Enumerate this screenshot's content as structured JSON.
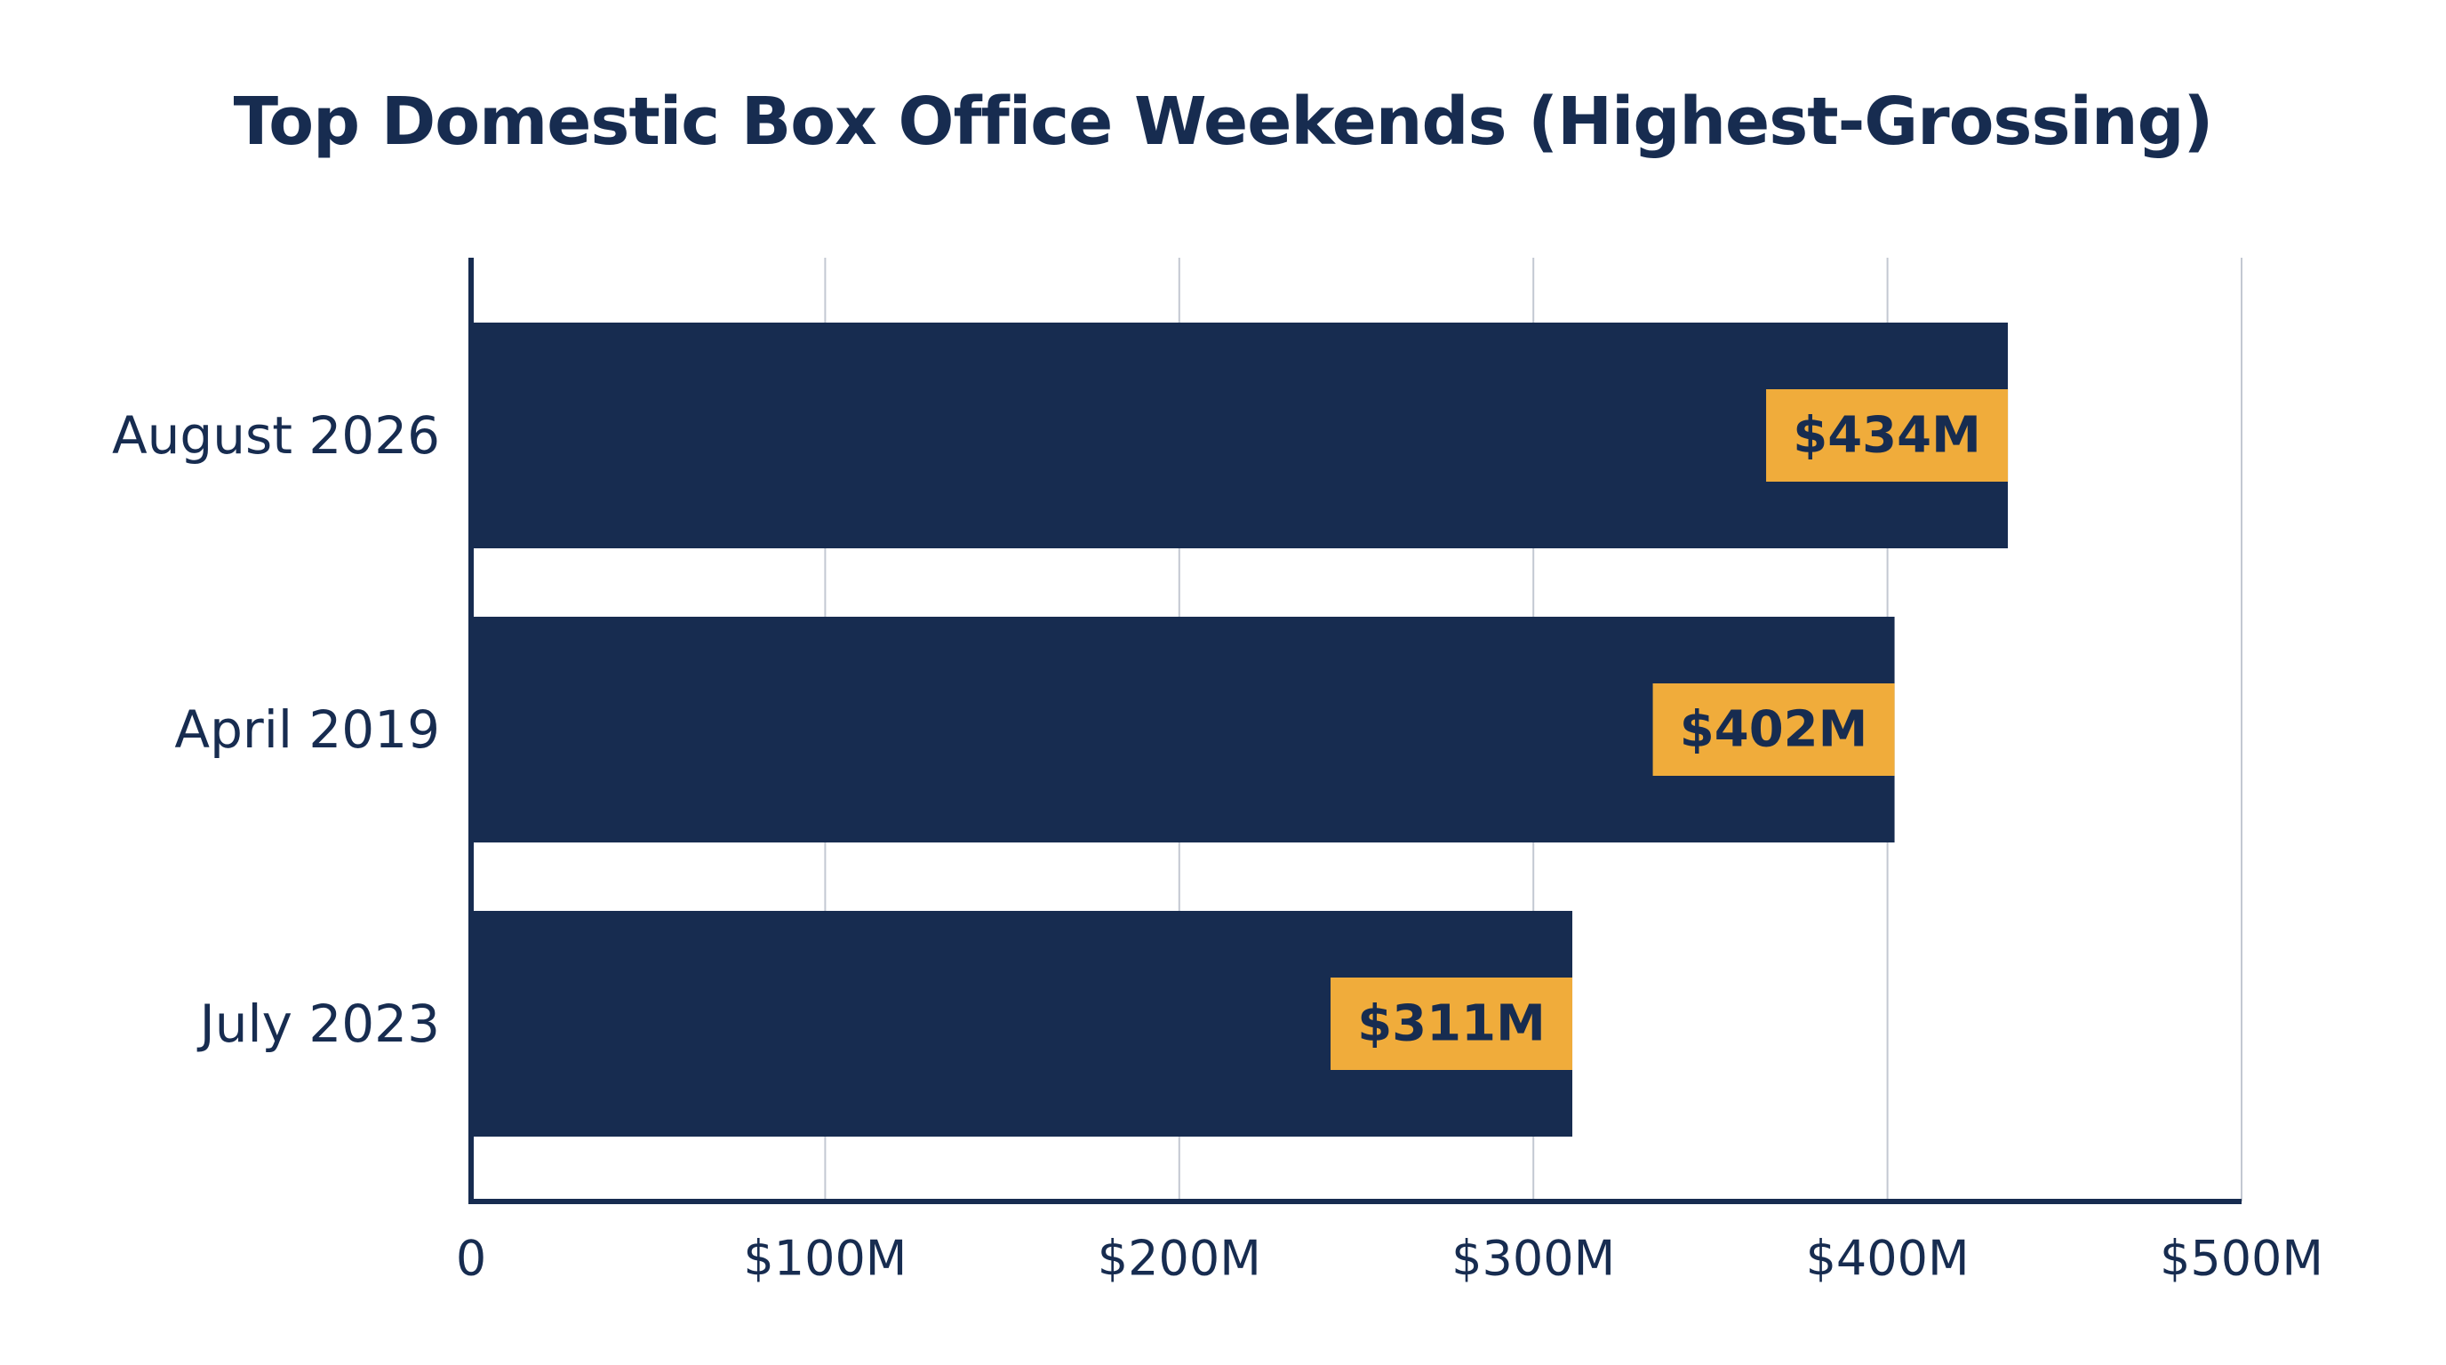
{
  "chart_data": {
    "type": "bar",
    "orientation": "horizontal",
    "title": "Top Domestic Box Office Weekends (Highest-Grossing)",
    "categories": [
      "August 2026",
      "April 2019",
      "July 2023"
    ],
    "values": [
      434,
      402,
      311
    ],
    "value_labels": [
      "$434M",
      "$402M",
      "$311M"
    ],
    "xlim": [
      0,
      500
    ],
    "xticks": [
      0,
      100,
      200,
      300,
      400,
      500
    ],
    "xtick_labels": [
      "0",
      "$100M",
      "$200M",
      "$300M",
      "$400M",
      "$500M"
    ],
    "xlabel": "",
    "ylabel": "",
    "grid": "vertical",
    "legend": "none",
    "colors": {
      "bar": "#172c50",
      "label_bg": "#f0ac3b",
      "text": "#172c50",
      "grid": "#c3c8d2",
      "axis": "#172c50"
    }
  }
}
